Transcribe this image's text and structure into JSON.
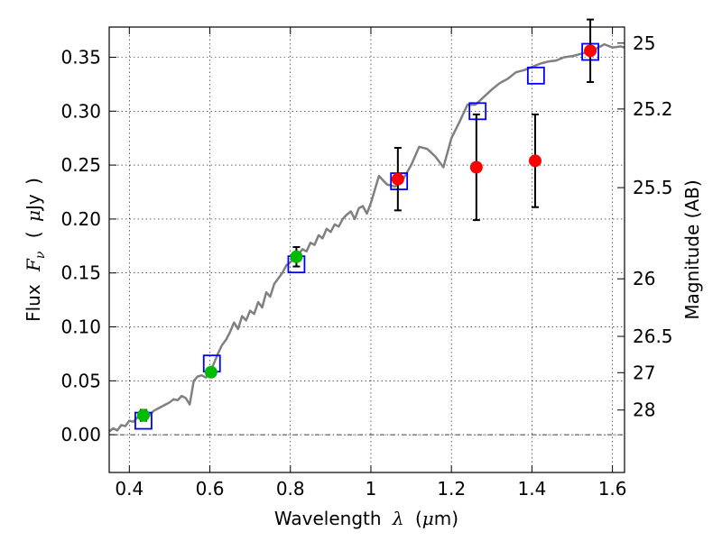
{
  "chart_data": {
    "type": "scatter",
    "xlabel": {
      "prefix": "Wavelength",
      "symbol": "λ",
      "unit_open": "(",
      "unit_mu": "μ",
      "unit_rest": "m)"
    },
    "ylabel": {
      "prefix": "Flux",
      "symbol": "F",
      "subscript": "ν",
      "unit_open": "(",
      "unit_mu": "μ",
      "unit_rest": "Jy",
      "unit_close": ")"
    },
    "y2label": "Magnitude (AB)",
    "xlim": [
      0.35,
      1.63
    ],
    "ylim": [
      -0.035,
      0.378
    ],
    "xticks": [
      {
        "value": 0.4,
        "label": "0.4"
      },
      {
        "value": 0.6,
        "label": "0.6"
      },
      {
        "value": 0.8,
        "label": "0.8"
      },
      {
        "value": 1.0,
        "label": "1"
      },
      {
        "value": 1.2,
        "label": "1.2"
      },
      {
        "value": 1.4,
        "label": "1.4"
      },
      {
        "value": 1.6,
        "label": "1.6"
      }
    ],
    "yticks": [
      {
        "value": 0.0,
        "label": "0.00"
      },
      {
        "value": 0.05,
        "label": "0.05"
      },
      {
        "value": 0.1,
        "label": "0.10"
      },
      {
        "value": 0.15,
        "label": "0.15"
      },
      {
        "value": 0.2,
        "label": "0.20"
      },
      {
        "value": 0.25,
        "label": "0.25"
      },
      {
        "value": 0.3,
        "label": "0.30"
      },
      {
        "value": 0.35,
        "label": "0.35"
      }
    ],
    "y2ticks": [
      {
        "mag": 25,
        "label": "25"
      },
      {
        "mag": 25.2,
        "label": "25.2"
      },
      {
        "mag": 25.5,
        "label": "25.5"
      },
      {
        "mag": 26,
        "label": "26"
      },
      {
        "mag": 26.5,
        "label": "26.5"
      },
      {
        "mag": 27,
        "label": "27"
      },
      {
        "mag": 28,
        "label": "28"
      }
    ],
    "grid": true,
    "zero_line": true,
    "colors": {
      "sed": "#808080",
      "model": "#0000ff",
      "optical": "#00bb00",
      "infrared": "#ff0000",
      "errorbar": "#000000"
    },
    "series": [
      {
        "kind": "line",
        "points": [
          [
            0.35,
            0.003
          ],
          [
            0.36,
            0.006
          ],
          [
            0.37,
            0.004
          ],
          [
            0.38,
            0.009
          ],
          [
            0.39,
            0.008
          ],
          [
            0.4,
            0.013
          ],
          [
            0.41,
            0.012
          ],
          [
            0.42,
            0.016
          ],
          [
            0.43,
            0.015
          ],
          [
            0.44,
            0.02
          ],
          [
            0.45,
            0.018
          ],
          [
            0.46,
            0.022
          ],
          [
            0.47,
            0.024
          ],
          [
            0.48,
            0.026
          ],
          [
            0.49,
            0.028
          ],
          [
            0.5,
            0.03
          ],
          [
            0.51,
            0.033
          ],
          [
            0.52,
            0.032
          ],
          [
            0.53,
            0.036
          ],
          [
            0.54,
            0.034
          ],
          [
            0.55,
            0.028
          ],
          [
            0.56,
            0.05
          ],
          [
            0.57,
            0.054
          ],
          [
            0.58,
            0.055
          ],
          [
            0.59,
            0.053
          ],
          [
            0.6,
            0.058
          ],
          [
            0.61,
            0.066
          ],
          [
            0.62,
            0.075
          ],
          [
            0.63,
            0.083
          ],
          [
            0.64,
            0.088
          ],
          [
            0.65,
            0.095
          ],
          [
            0.66,
            0.104
          ],
          [
            0.67,
            0.098
          ],
          [
            0.68,
            0.11
          ],
          [
            0.69,
            0.106
          ],
          [
            0.7,
            0.115
          ],
          [
            0.71,
            0.112
          ],
          [
            0.72,
            0.123
          ],
          [
            0.73,
            0.118
          ],
          [
            0.74,
            0.132
          ],
          [
            0.75,
            0.128
          ],
          [
            0.76,
            0.14
          ],
          [
            0.77,
            0.145
          ],
          [
            0.78,
            0.15
          ],
          [
            0.79,
            0.157
          ],
          [
            0.8,
            0.16
          ],
          [
            0.81,
            0.164
          ],
          [
            0.82,
            0.167
          ],
          [
            0.83,
            0.172
          ],
          [
            0.84,
            0.17
          ],
          [
            0.85,
            0.178
          ],
          [
            0.86,
            0.176
          ],
          [
            0.87,
            0.185
          ],
          [
            0.88,
            0.182
          ],
          [
            0.89,
            0.191
          ],
          [
            0.9,
            0.188
          ],
          [
            0.91,
            0.195
          ],
          [
            0.92,
            0.193
          ],
          [
            0.93,
            0.2
          ],
          [
            0.94,
            0.204
          ],
          [
            0.95,
            0.207
          ],
          [
            0.96,
            0.2
          ],
          [
            0.97,
            0.21
          ],
          [
            0.98,
            0.212
          ],
          [
            0.99,
            0.205
          ],
          [
            1.0,
            0.215
          ],
          [
            1.02,
            0.24
          ],
          [
            1.04,
            0.232
          ],
          [
            1.06,
            0.23
          ],
          [
            1.08,
            0.237
          ],
          [
            1.1,
            0.25
          ],
          [
            1.12,
            0.267
          ],
          [
            1.14,
            0.265
          ],
          [
            1.16,
            0.258
          ],
          [
            1.18,
            0.248
          ],
          [
            1.2,
            0.275
          ],
          [
            1.22,
            0.29
          ],
          [
            1.24,
            0.306
          ],
          [
            1.26,
            0.306
          ],
          [
            1.28,
            0.313
          ],
          [
            1.3,
            0.32
          ],
          [
            1.32,
            0.326
          ],
          [
            1.34,
            0.33
          ],
          [
            1.36,
            0.336
          ],
          [
            1.38,
            0.338
          ],
          [
            1.4,
            0.341
          ],
          [
            1.42,
            0.344
          ],
          [
            1.44,
            0.346
          ],
          [
            1.46,
            0.347
          ],
          [
            1.48,
            0.35
          ],
          [
            1.5,
            0.351
          ],
          [
            1.52,
            0.353
          ],
          [
            1.54,
            0.355
          ],
          [
            1.56,
            0.358
          ],
          [
            1.58,
            0.362
          ],
          [
            1.6,
            0.359
          ],
          [
            1.62,
            0.36
          ],
          [
            1.63,
            0.359
          ]
        ]
      },
      {
        "kind": "model-squares",
        "points": [
          [
            0.435,
            0.013
          ],
          [
            0.605,
            0.066
          ],
          [
            0.815,
            0.158
          ],
          [
            1.07,
            0.235
          ],
          [
            1.265,
            0.3
          ],
          [
            1.41,
            0.333
          ],
          [
            1.545,
            0.355
          ]
        ]
      },
      {
        "kind": "optical-points",
        "points": [
          {
            "x": 0.435,
            "y": 0.018,
            "err": 0.005
          },
          {
            "x": 0.603,
            "y": 0.058,
            "err": 0.003
          },
          {
            "x": 0.815,
            "y": 0.165,
            "err": 0.009
          }
        ]
      },
      {
        "kind": "infrared-points",
        "points": [
          {
            "x": 1.067,
            "y": 0.237,
            "err": 0.029
          },
          {
            "x": 1.262,
            "y": 0.248,
            "err": 0.049
          },
          {
            "x": 1.408,
            "y": 0.254,
            "err": 0.043
          },
          {
            "x": 1.545,
            "y": 0.356,
            "err": 0.029
          }
        ]
      }
    ]
  }
}
